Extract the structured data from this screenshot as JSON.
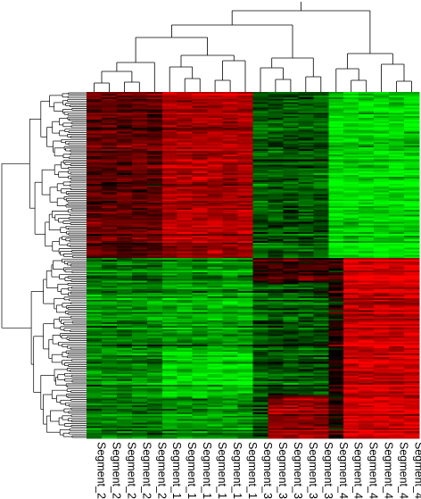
{
  "chart_data": {
    "type": "heatmap",
    "columns": [
      "Segment_2",
      "Segment_2",
      "Segment_2",
      "Segment_2",
      "Segment_2",
      "Segment_1",
      "Segment_1",
      "Segment_1",
      "Segment_1",
      "Segment_1",
      "Segment_1",
      "Segment_3",
      "Segment_3",
      "Segment_3",
      "Segment_3",
      "Segment_3",
      "Segment_4",
      "Segment_4",
      "Segment_4",
      "Segment_4",
      "Segment_4",
      "Segment_4"
    ],
    "row_count": 200,
    "row_dendrogram": true,
    "column_dendrogram": true,
    "color_scale": {
      "low": "#00ff00",
      "mid": "#000000",
      "high": "#ff0000"
    },
    "value_range": [
      -1,
      1
    ],
    "blocks": [
      {
        "rows": "0-95",
        "columns": "Segment_2",
        "level": 0.35
      },
      {
        "rows": "0-95",
        "columns": "Segment_1",
        "level": 0.65
      },
      {
        "rows": "0-95",
        "columns": "Segment_3",
        "level": -0.35
      },
      {
        "rows": "0-95",
        "columns": "Segment_4",
        "level": -0.85
      },
      {
        "rows": "96-199",
        "columns": "Segment_2",
        "level": -0.5
      },
      {
        "rows": "96-199",
        "columns": "Segment_1",
        "level": -0.6
      },
      {
        "rows": "96-199",
        "columns": "Segment_3",
        "level": -0.3
      },
      {
        "rows": "96-199",
        "columns": "Segment_4",
        "level": 0.8
      }
    ],
    "legend": "none",
    "grid": false
  }
}
